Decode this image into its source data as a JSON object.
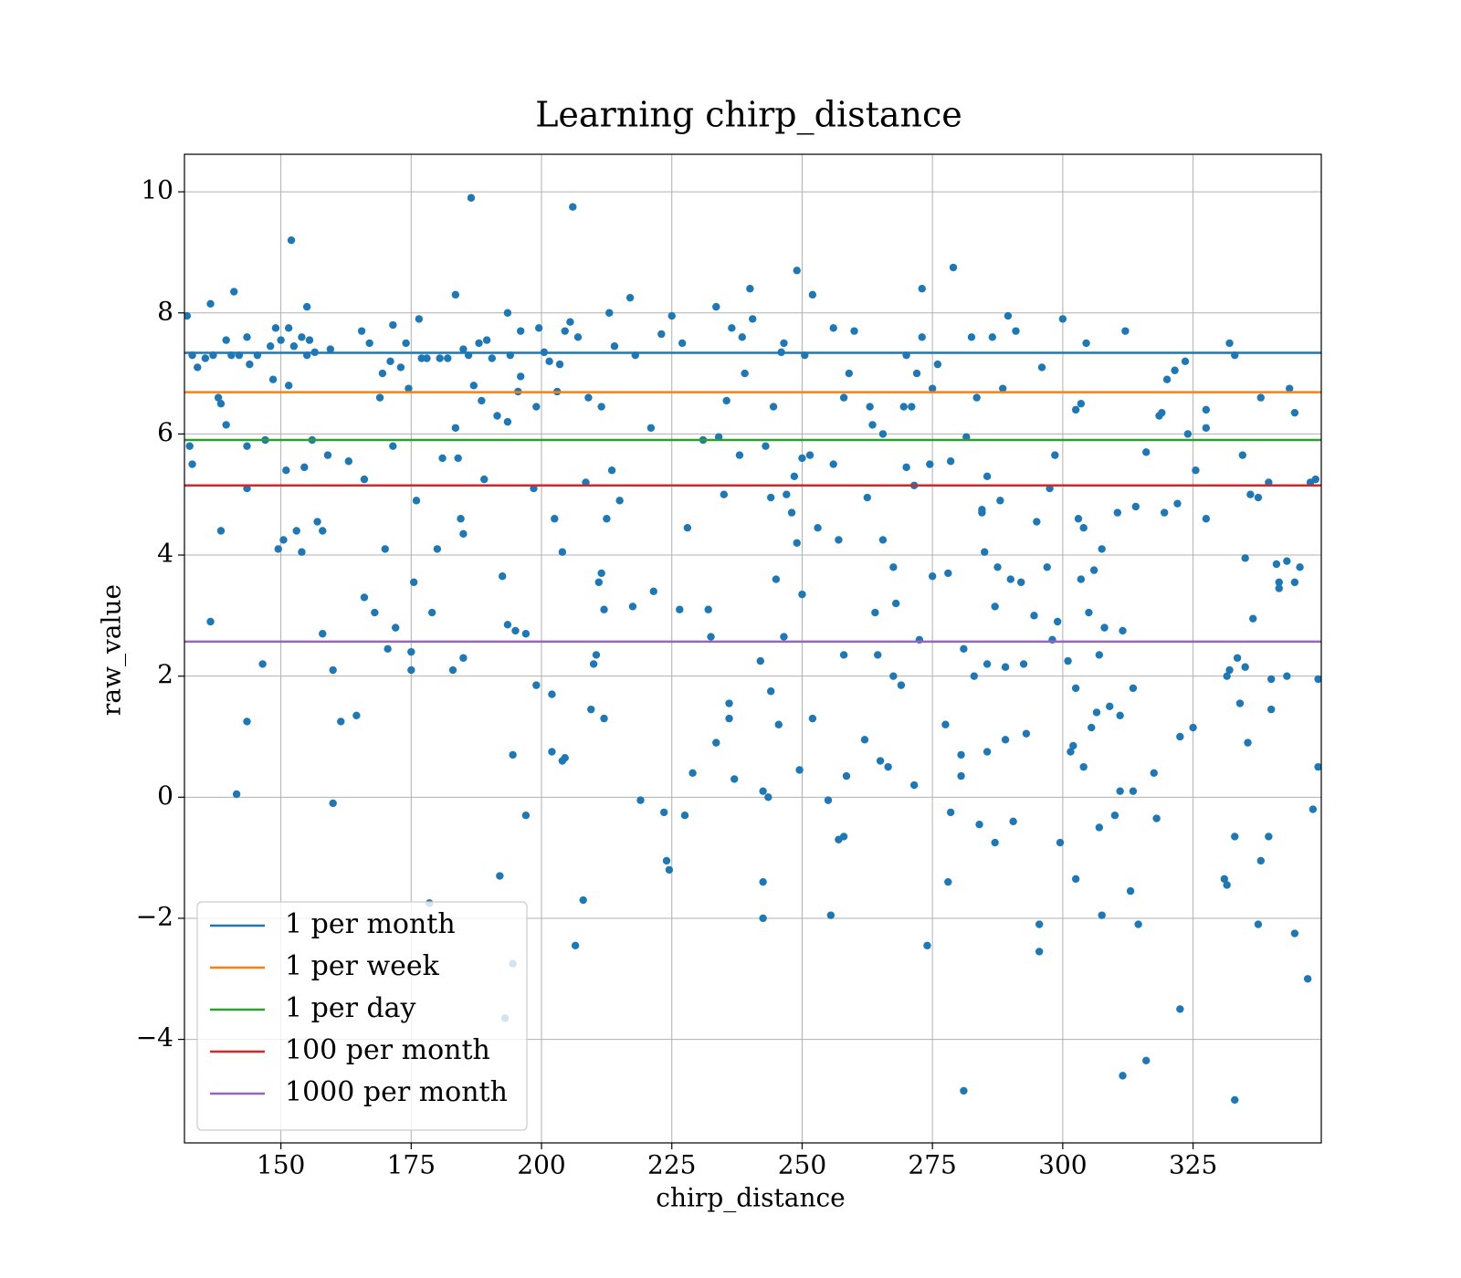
{
  "chart_data": {
    "type": "scatter",
    "title": "Learning chirp_distance",
    "x_label": "chirp_distance",
    "y_label": "raw_value",
    "color": "#1f77b4",
    "x": [
      132,
      132.5,
      133,
      133,
      134,
      135.5,
      136.5,
      136.5,
      137,
      138,
      138.5,
      138.5,
      139.5,
      139.5,
      140.5,
      141,
      141.5,
      142,
      143.5,
      143.5,
      143.5,
      143.5,
      144,
      145.5,
      146.5,
      147,
      148,
      148.5,
      149,
      149.5,
      150,
      150.5,
      151,
      151.5,
      151.5,
      152,
      152.5,
      153,
      154,
      154,
      154.5,
      155,
      155,
      155.5,
      156,
      156.5,
      157,
      158,
      158,
      159,
      159.5,
      160,
      160,
      161.5,
      163,
      164.5,
      165.5,
      166,
      166,
      167,
      168,
      169,
      169.5,
      170,
      170.5,
      171,
      171.5,
      171.5,
      172,
      173,
      174,
      174.5,
      175,
      175,
      175.5,
      176,
      176.5,
      177,
      178,
      178.5,
      179,
      180,
      180.5,
      181,
      182,
      183,
      183.5,
      183.5,
      184,
      184.5,
      185,
      185,
      185,
      186,
      186.5,
      187,
      188,
      188.5,
      189,
      189.5,
      190.5,
      191.5,
      192,
      192.5,
      193,
      193.5,
      193.5,
      193.5,
      194,
      194.5,
      194.5,
      195,
      195.5,
      196,
      196,
      197,
      197,
      198.5,
      199,
      199,
      199.5,
      200.5,
      201.5,
      202,
      202,
      202.5,
      203,
      203.5,
      204,
      204,
      204.5,
      204.5,
      205.5,
      206,
      206.5,
      207,
      208,
      208.5,
      209,
      209.5,
      210,
      210.5,
      211,
      211.5,
      211.5,
      212,
      212,
      212.5,
      213,
      213.5,
      214,
      215,
      217,
      217.5,
      218,
      219,
      221,
      221.5,
      223,
      223.5,
      224,
      224.5,
      225,
      226.5,
      227,
      227.5,
      228,
      229,
      231,
      232,
      232.5,
      233.5,
      233.5,
      234,
      235,
      235.5,
      236,
      236,
      236.5,
      237,
      238,
      238.5,
      239,
      240,
      240.5,
      242,
      242.5,
      242.5,
      242.5,
      243,
      243.5,
      244,
      244,
      244.5,
      245,
      245.5,
      246,
      246.5,
      246.5,
      247,
      248,
      248.5,
      249,
      249,
      249.5,
      250,
      250,
      250.5,
      251.5,
      252,
      252,
      253,
      255,
      255.5,
      256,
      256,
      257,
      257,
      258,
      258,
      258,
      258.5,
      259,
      260,
      262,
      262.5,
      263,
      263.5,
      264,
      264.5,
      265,
      265.5,
      265.5,
      266.5,
      267.5,
      267.5,
      268,
      269,
      269.5,
      270,
      270,
      271,
      271.5,
      271.5,
      272,
      272.5,
      273,
      273,
      274,
      274.5,
      275,
      275,
      276,
      277.5,
      278,
      278,
      278.5,
      278.5,
      279,
      280.5,
      280.5,
      281,
      281,
      281.5,
      282.5,
      283,
      283.5,
      284,
      284.5,
      284.5,
      285,
      285.5,
      285.5,
      285.5,
      286.5,
      287,
      287,
      287.5,
      288,
      288.5,
      289,
      289,
      289.5,
      290,
      290.5,
      291,
      292,
      292.5,
      293,
      294.5,
      295,
      295.5,
      295.5,
      296,
      297,
      297.5,
      298,
      298.5,
      299,
      299.5,
      300,
      301,
      301.5,
      302,
      302.5,
      302.5,
      302.5,
      303,
      303.5,
      303.5,
      304,
      304,
      304.5,
      305,
      305.5,
      306,
      306.5,
      307,
      307,
      307.5,
      307.5,
      308,
      309,
      310,
      310.5,
      311,
      311,
      311.5,
      311.5,
      312,
      313,
      313.5,
      313.5,
      314,
      314.5,
      316,
      316,
      317.5,
      318,
      318.5,
      319,
      319.5,
      320,
      321.5,
      322,
      322.5,
      322.5,
      323.5,
      324,
      325,
      325.5,
      327.5,
      327.5,
      327.5,
      331,
      331.5,
      331.5,
      332,
      332,
      333,
      333,
      333,
      333.5,
      334,
      334.5,
      335,
      335,
      335.5,
      336,
      336.5,
      337.5,
      337.5,
      338,
      338,
      339.5,
      339.5,
      340,
      340,
      341,
      341.5,
      341.5,
      343,
      343,
      343.5,
      344.5,
      344.5,
      344.5,
      345.5,
      347,
      347.5,
      348,
      348.5,
      349,
      349
    ],
    "values": [
      7.95,
      5.8,
      5.5,
      7.3,
      7.1,
      7.25,
      8.15,
      2.9,
      7.3,
      6.6,
      6.5,
      4.4,
      6.15,
      7.55,
      7.3,
      8.35,
      0.05,
      7.3,
      7.6,
      5.8,
      5.1,
      1.25,
      7.15,
      7.3,
      2.2,
      5.9,
      7.45,
      6.9,
      7.75,
      4.1,
      7.55,
      4.25,
      5.4,
      6.8,
      7.75,
      9.2,
      7.45,
      4.4,
      7.6,
      4.05,
      5.45,
      8.1,
      7.3,
      7.55,
      5.9,
      7.35,
      4.55,
      4.4,
      2.7,
      5.65,
      7.4,
      -0.1,
      2.1,
      1.25,
      5.55,
      1.35,
      7.7,
      3.3,
      5.25,
      7.5,
      3.05,
      6.6,
      7.0,
      4.1,
      2.45,
      7.2,
      7.8,
      5.8,
      2.8,
      7.1,
      7.5,
      6.75,
      2.4,
      2.1,
      3.55,
      4.9,
      7.9,
      7.25,
      7.25,
      -1.75,
      3.05,
      4.1,
      7.25,
      5.6,
      7.25,
      2.1,
      8.3,
      6.1,
      5.6,
      4.6,
      4.35,
      7.4,
      2.3,
      7.3,
      9.9,
      6.8,
      7.5,
      6.55,
      5.25,
      7.55,
      7.25,
      6.3,
      -1.3,
      3.65,
      -3.65,
      2.85,
      8.0,
      6.2,
      7.3,
      0.7,
      -2.75,
      2.75,
      6.7,
      7.7,
      6.95,
      2.7,
      -0.3,
      5.1,
      1.85,
      6.45,
      7.75,
      7.35,
      7.2,
      0.75,
      1.7,
      4.6,
      6.7,
      7.15,
      0.6,
      4.05,
      0.65,
      7.7,
      7.85,
      9.75,
      -2.45,
      7.6,
      -1.7,
      5.2,
      6.6,
      1.45,
      2.2,
      2.35,
      3.55,
      6.45,
      3.7,
      1.3,
      3.1,
      4.6,
      8.0,
      5.4,
      7.45,
      4.9,
      8.25,
      3.15,
      7.3,
      -0.05,
      6.1,
      3.4,
      7.65,
      -0.25,
      -1.05,
      -1.2,
      7.95,
      3.1,
      7.5,
      -0.3,
      4.45,
      0.4,
      5.9,
      3.1,
      2.65,
      0.9,
      8.1,
      5.95,
      5.0,
      6.55,
      1.55,
      1.3,
      7.75,
      0.3,
      5.65,
      7.6,
      7.0,
      8.4,
      7.9,
      2.25,
      0.1,
      -1.4,
      -2.0,
      5.8,
      0.0,
      1.75,
      4.95,
      6.45,
      3.6,
      1.2,
      7.35,
      7.5,
      2.65,
      5.0,
      4.7,
      5.3,
      8.7,
      4.2,
      0.45,
      3.35,
      5.6,
      7.3,
      5.65,
      1.3,
      8.3,
      4.45,
      -0.05,
      -1.95,
      5.5,
      7.75,
      4.25,
      -0.7,
      2.35,
      -0.65,
      6.6,
      0.35,
      7.0,
      7.7,
      0.95,
      4.95,
      6.45,
      6.15,
      3.05,
      2.35,
      0.6,
      4.25,
      6.0,
      0.5,
      2.0,
      3.8,
      3.2,
      1.85,
      6.45,
      7.3,
      5.45,
      6.45,
      0.2,
      5.15,
      7.0,
      2.6,
      8.4,
      7.6,
      -2.45,
      5.5,
      3.65,
      6.75,
      7.15,
      1.2,
      3.7,
      -1.4,
      5.55,
      -0.25,
      8.75,
      0.7,
      0.35,
      -4.85,
      2.45,
      5.95,
      7.6,
      2.0,
      6.6,
      -0.45,
      4.75,
      4.7,
      4.05,
      5.3,
      2.2,
      0.75,
      7.6,
      -0.75,
      3.15,
      3.8,
      4.9,
      6.75,
      2.15,
      0.95,
      7.95,
      3.6,
      -0.4,
      7.7,
      3.55,
      2.2,
      1.05,
      3.0,
      4.55,
      -2.55,
      -2.1,
      7.1,
      3.8,
      5.1,
      2.6,
      5.65,
      2.9,
      -0.75,
      7.9,
      2.25,
      0.75,
      0.85,
      6.4,
      1.8,
      -1.35,
      4.6,
      3.6,
      6.5,
      4.45,
      0.5,
      7.5,
      3.05,
      1.15,
      3.75,
      1.4,
      2.35,
      -0.5,
      4.1,
      -1.95,
      2.8,
      1.5,
      -0.3,
      4.7,
      0.1,
      1.35,
      2.75,
      -4.6,
      7.7,
      -1.55,
      1.8,
      0.1,
      4.8,
      -2.1,
      -4.35,
      5.7,
      0.4,
      -0.35,
      6.3,
      6.35,
      4.7,
      6.9,
      7.05,
      4.85,
      1.0,
      -3.5,
      7.2,
      6.0,
      1.15,
      5.4,
      6.4,
      6.1,
      4.6,
      -1.35,
      -1.45,
      2.0,
      7.5,
      2.1,
      7.3,
      -0.65,
      -5.0,
      2.3,
      1.55,
      5.65,
      3.95,
      2.15,
      0.9,
      5.0,
      2.95,
      -2.1,
      4.95,
      6.6,
      -1.05,
      -0.65,
      5.2,
      1.45,
      1.95,
      3.85,
      3.45,
      3.55,
      3.9,
      2.0,
      6.75,
      6.35,
      3.55,
      -2.25,
      3.8,
      -3.0,
      5.2,
      -0.2,
      5.25,
      1.95,
      0.5
    ],
    "hlines": [
      {
        "name": "1 per month",
        "color": "#1f77b4",
        "value": 7.34
      },
      {
        "name": "1 per week",
        "color": "#ff7f0e",
        "value": 6.69
      },
      {
        "name": "1 per day",
        "color": "#2ca02c",
        "value": 5.9
      },
      {
        "name": "100 per month",
        "color": "#d62728",
        "value": 5.15
      },
      {
        "name": "1000 per month",
        "color": "#9467bd",
        "value": 2.57
      }
    ],
    "xlim": [
      131.5,
      349.6
    ],
    "ylim": [
      -5.71,
      10.62
    ],
    "xticks": [
      150,
      175,
      200,
      225,
      250,
      275,
      300,
      325
    ],
    "yticks": [
      {
        "value": -4,
        "label": "−4"
      },
      {
        "value": -2,
        "label": "−2"
      },
      0,
      2,
      4,
      6,
      8,
      10
    ],
    "grid": true,
    "legend": "lower left"
  }
}
